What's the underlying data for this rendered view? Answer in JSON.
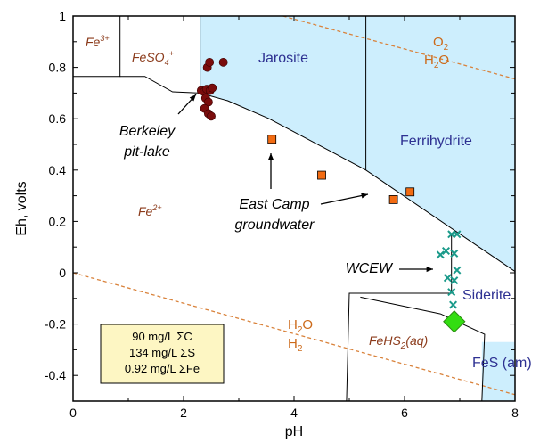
{
  "colors": {
    "stable_field": "#cdeefd",
    "boundary": "#000000",
    "water_line": "#d9823b",
    "berkeley": "#7a0c0c",
    "east_camp": "#f26b12",
    "wcew": "#1a9a8a",
    "diamond": "#33dd11",
    "legend_fill": "#fdf6c3",
    "field_brown": "#8b3a1a",
    "field_blue": "#2e3192",
    "water_text": "#cc6a1a"
  },
  "chart_data": {
    "type": "scatter",
    "xlabel": "pH",
    "ylabel": "Eh, volts",
    "xlim": [
      0,
      8
    ],
    "ylim": [
      -0.5,
      1.0
    ],
    "x_ticks": [
      "0",
      "2",
      "4",
      "6",
      "8"
    ],
    "y_ticks": [
      "-0.4",
      "-0.2",
      "0",
      "0.2",
      "0.4",
      "0.6",
      "0.8",
      "1"
    ],
    "fields": {
      "fe3": {
        "base": "Fe",
        "sup": "3+"
      },
      "feso4": {
        "base": "FeSO",
        "sub": "4",
        "sup": "+"
      },
      "fe2": {
        "base": "Fe",
        "sup": "2+"
      },
      "jarosite": "Jarosite",
      "ferrihydrite": "Ferrihydrite",
      "siderite": "Siderite",
      "fes": "FeS (am)",
      "fehs2": {
        "base": "FeHS",
        "sub": "2",
        "rest": "(aq)"
      }
    },
    "water_lines": {
      "upper_o": "O",
      "upper_o_sub": "2",
      "upper_h2o": "H",
      "upper_h2o_sub": "2",
      "upper_h2o_rest": "O",
      "lower_h2o": "H",
      "lower_h2o_sub": "2",
      "lower_h2o_rest": "O",
      "lower_h2": "H",
      "lower_h2_sub": "2"
    },
    "annotations": {
      "berkeley_line1": "Berkeley",
      "berkeley_line2": "pit-lake",
      "eastcamp_line1": "East Camp",
      "eastcamp_line2": "groundwater",
      "wcew": "WCEW"
    },
    "legend_box": [
      "90 mg/L ΣC",
      "134 mg/L ΣS",
      "0.92 mg/L ΣFe"
    ],
    "series": [
      {
        "marker": "circle",
        "points": [
          [
            2.32,
            0.71
          ],
          [
            2.37,
            0.705
          ],
          [
            2.42,
            0.715
          ],
          [
            2.48,
            0.71
          ],
          [
            2.52,
            0.72
          ],
          [
            2.43,
            0.8
          ],
          [
            2.47,
            0.82
          ],
          [
            2.72,
            0.82
          ],
          [
            2.4,
            0.68
          ],
          [
            2.45,
            0.665
          ],
          [
            2.38,
            0.64
          ],
          [
            2.45,
            0.62
          ],
          [
            2.5,
            0.61
          ]
        ]
      },
      {
        "marker": "square",
        "points": [
          [
            3.6,
            0.52
          ],
          [
            4.5,
            0.38
          ],
          [
            5.8,
            0.285
          ],
          [
            6.1,
            0.315
          ]
        ]
      },
      {
        "marker": "x",
        "points": [
          [
            6.85,
            0.15
          ],
          [
            6.95,
            0.15
          ],
          [
            6.75,
            0.085
          ],
          [
            6.9,
            0.075
          ],
          [
            6.65,
            0.07
          ],
          [
            6.95,
            0.01
          ],
          [
            6.78,
            -0.02
          ],
          [
            6.9,
            -0.03
          ],
          [
            6.85,
            -0.075
          ],
          [
            6.88,
            -0.125
          ]
        ]
      },
      {
        "marker": "diamond",
        "points": [
          [
            6.9,
            -0.19
          ]
        ]
      }
    ]
  }
}
